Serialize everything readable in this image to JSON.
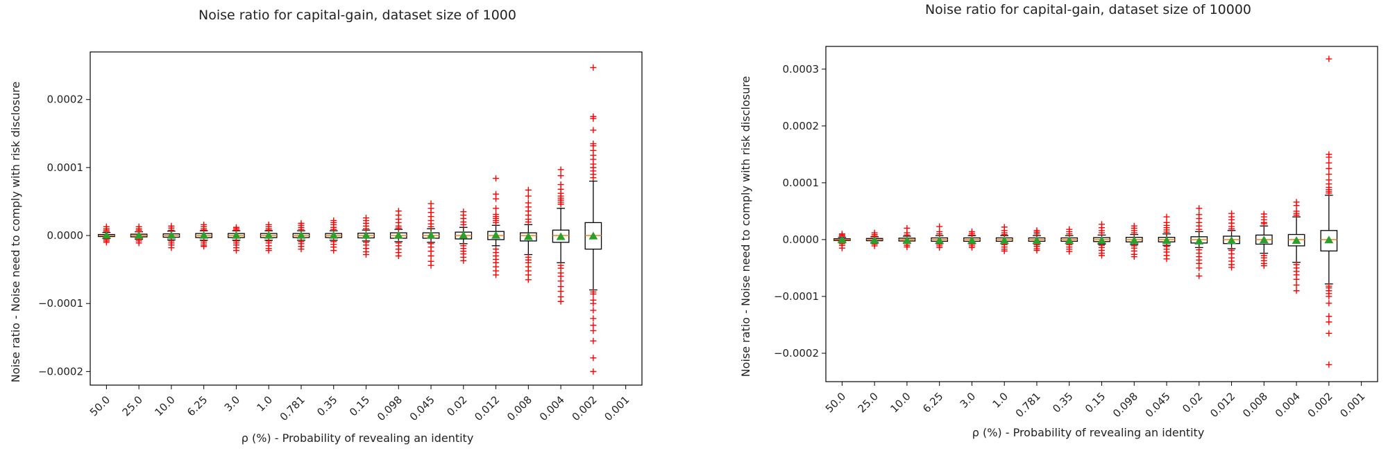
{
  "chart_data": [
    {
      "type": "box",
      "title": "Noise ratio for capital-gain, dataset size of 1000",
      "xlabel": "ρ (%) - Probability of revealing an identity",
      "ylabel": "Noise ratio - Noise need to comply with risk disclosure",
      "categories": [
        "50.0",
        "25.0",
        "10.0",
        "6.25",
        "3.0",
        "1.0",
        "0.781",
        "0.35",
        "0.15",
        "0.098",
        "0.045",
        "0.02",
        "0.012",
        "0.008",
        "0.004",
        "0.002",
        "0.001"
      ],
      "yticks": [
        -0.0002,
        -0.0001,
        0.0,
        0.0001,
        0.0002
      ],
      "ytick_labels": [
        "−0.0002",
        "−0.0001",
        "0.0000",
        "0.0001",
        "0.0002"
      ],
      "ylim": [
        -0.00022,
        0.00027
      ],
      "grid": false,
      "boxes": [
        {
          "q1": -1.5e-06,
          "median": 0.0,
          "q3": 1.5e-06,
          "mean": 0.0,
          "whisker_low": -4.5e-06,
          "whisker_high": 4.5e-06,
          "fliers": [
            1.3e-05,
            1e-05,
            8e-06,
            6e-06,
            -6e-06,
            -8e-06,
            -1e-05
          ]
        },
        {
          "q1": -2e-06,
          "median": 0.0,
          "q3": 2e-06,
          "mean": 0.0,
          "whisker_low": -5.5e-06,
          "whisker_high": 5.5e-06,
          "fliers": [
            1.3e-05,
            1e-05,
            8e-06,
            6e-06,
            -6e-06,
            -8e-06,
            -1.1e-05
          ]
        },
        {
          "q1": -2.5e-06,
          "median": 0.0,
          "q3": 2.5e-06,
          "mean": 0.0,
          "whisker_low": -6.5e-06,
          "whisker_high": 6.5e-06,
          "fliers": [
            1.4e-05,
            1.1e-05,
            8e-06,
            -8e-06,
            -1.1e-05,
            -1.4e-05,
            -1.8e-05
          ]
        },
        {
          "q1": -3e-06,
          "median": 0.0,
          "q3": 3e-06,
          "mean": 0.0,
          "whisker_low": -7e-06,
          "whisker_high": 7e-06,
          "fliers": [
            1.6e-05,
            1.3e-05,
            1e-05,
            8e-06,
            -8e-06,
            -1.1e-05,
            -1.4e-05,
            -1.6e-05
          ]
        },
        {
          "q1": -3e-06,
          "median": 0.0,
          "q3": 3e-06,
          "mean": 0.0,
          "whisker_low": -7e-06,
          "whisker_high": 7e-06,
          "fliers": [
            1.2e-05,
            1e-05,
            8e-06,
            -8e-06,
            -1.1e-05,
            -1.4e-05,
            -1.8e-05,
            -2.2e-05
          ]
        },
        {
          "q1": -3e-06,
          "median": 0.0,
          "q3": 3e-06,
          "mean": 0.0,
          "whisker_low": -7e-06,
          "whisker_high": 7e-06,
          "fliers": [
            1.6e-05,
            1.3e-05,
            1e-05,
            8e-06,
            -8e-06,
            -1.1e-05,
            -1.5e-05,
            -1.9e-05,
            -2.2e-05
          ]
        },
        {
          "q1": -3e-06,
          "median": 0.0,
          "q3": 3e-06,
          "mean": 0.0,
          "whisker_low": -7e-06,
          "whisker_high": 7e-06,
          "fliers": [
            1.8e-05,
            1.5e-05,
            1.2e-05,
            9e-06,
            -9e-06,
            -1.2e-05,
            -1.6e-05,
            -2e-05
          ]
        },
        {
          "q1": -3e-06,
          "median": 0.0,
          "q3": 3e-06,
          "mean": 0.0,
          "whisker_low": -7e-06,
          "whisker_high": 7e-06,
          "fliers": [
            2.2e-05,
            1.9e-05,
            1.6e-05,
            1.2e-05,
            9e-06,
            -9e-06,
            -1.3e-05,
            -1.7e-05,
            -2.2e-05
          ]
        },
        {
          "q1": -3.5e-06,
          "median": 0.0,
          "q3": 3.5e-06,
          "mean": 0.0,
          "whisker_low": -8e-06,
          "whisker_high": 8e-06,
          "fliers": [
            2.6e-05,
            2.2e-05,
            1.8e-05,
            1.4e-05,
            1e-05,
            -1e-05,
            -1.4e-05,
            -1.9e-05,
            -2.4e-05,
            -2.8e-05
          ]
        },
        {
          "q1": -4e-06,
          "median": 0.0,
          "q3": 4e-06,
          "mean": 0.0,
          "whisker_low": -9e-06,
          "whisker_high": 9e-06,
          "fliers": [
            3.6e-05,
            3e-05,
            2.4e-05,
            1.9e-05,
            1.4e-05,
            1.1e-05,
            -1.1e-05,
            -1.5e-05,
            -2e-05,
            -2.5e-05,
            -3e-05
          ]
        },
        {
          "q1": -4e-06,
          "median": 0.0,
          "q3": 4e-06,
          "mean": 0.0,
          "whisker_low": -1e-05,
          "whisker_high": 1e-05,
          "fliers": [
            4.7e-05,
            4e-05,
            3.4e-05,
            2.8e-05,
            2.2e-05,
            1.7e-05,
            1.3e-05,
            -1.2e-05,
            -1.7e-05,
            -2.3e-05,
            -3e-05,
            -3.8e-05,
            -4.4e-05
          ]
        },
        {
          "q1": -5e-06,
          "median": 0.0,
          "q3": 5e-06,
          "mean": 0.0,
          "whisker_low": -1.2e-05,
          "whisker_high": 1.2e-05,
          "fliers": [
            3.5e-05,
            3e-05,
            2.5e-05,
            2e-05,
            1.6e-05,
            -1.5e-05,
            -1.9e-05,
            -2.3e-05,
            -2.7e-05,
            -3.2e-05,
            -3.7e-05
          ]
        },
        {
          "q1": -6e-06,
          "median": 0.0,
          "q3": 6e-06,
          "mean": 0.0,
          "whisker_low": -1.5e-05,
          "whisker_high": 1.5e-05,
          "fliers": [
            8.4e-05,
            6.1e-05,
            5.4e-05,
            4e-05,
            3.1e-05,
            2.8e-05,
            2.5e-05,
            2.2e-05,
            1.9e-05,
            -2e-05,
            -2.5e-05,
            -3e-05,
            -3.5e-05,
            -4e-05,
            -4.6e-05,
            -5.2e-05,
            -5.8e-05
          ]
        },
        {
          "q1": -8e-06,
          "median": 0.0,
          "q3": 4e-06,
          "mean": -2e-06,
          "whisker_low": -2.8e-05,
          "whisker_high": 1.6e-05,
          "fliers": [
            6.7e-05,
            5.8e-05,
            4.8e-05,
            4.2e-05,
            3.6e-05,
            3e-05,
            2.4e-05,
            2e-05,
            -3.2e-05,
            -3.6e-05,
            -4e-05,
            -4.6e-05,
            -5.2e-05,
            -5.8e-05,
            -6.5e-05
          ]
        },
        {
          "q1": -1e-05,
          "median": 0.0,
          "q3": 8e-06,
          "mean": -2e-06,
          "whisker_low": -4e-05,
          "whisker_high": 4e-05,
          "fliers": [
            9.7e-05,
            8.8e-05,
            7.5e-05,
            6.8e-05,
            6.2e-05,
            5.8e-05,
            5.5e-05,
            5.2e-05,
            4.9e-05,
            4.6e-05,
            -4.4e-05,
            -4.8e-05,
            -5.5e-05,
            -6e-05,
            -6.7e-05,
            -7.5e-05,
            -8.2e-05,
            -9e-05,
            -9.7e-05
          ]
        },
        {
          "q1": -2e-05,
          "median": 0.0,
          "q3": 1.9e-05,
          "mean": -1e-06,
          "whisker_low": -8e-05,
          "whisker_high": 8e-05,
          "fliers": [
            0.000247,
            0.000175,
            0.000172,
            0.000155,
            0.000135,
            0.000132,
            0.000125,
            0.000118,
            0.000112,
            0.000105,
            0.0001,
            9.5e-05,
            9e-05,
            8.5e-05,
            -8.3e-05,
            -8.6e-05,
            -9.5e-05,
            -0.0001,
            -0.00011,
            -0.000122,
            -0.000132,
            -0.00014,
            -0.000155,
            -0.00018,
            -0.0002
          ]
        },
        null
      ]
    },
    {
      "type": "box",
      "title": "Noise ratio for capital-gain, dataset size of 10000",
      "xlabel": "ρ (%) - Probability of revealing an identity",
      "ylabel": "Noise ratio - Noise need to comply with risk disclosure",
      "categories": [
        "50.0",
        "25.0",
        "10.0",
        "6.25",
        "3.0",
        "1.0",
        "0.781",
        "0.35",
        "0.15",
        "0.098",
        "0.045",
        "0.02",
        "0.012",
        "0.008",
        "0.004",
        "0.002",
        "0.001"
      ],
      "yticks": [
        -0.0002,
        -0.0001,
        0.0,
        0.0001,
        0.0002,
        0.0003
      ],
      "ytick_labels": [
        "−0.0002",
        "−0.0001",
        "0.0000",
        "0.0001",
        "0.0002",
        "0.0003"
      ],
      "ylim": [
        -0.00025,
        0.00034
      ],
      "grid": false,
      "boxes": [
        {
          "q1": -1.5e-06,
          "median": 0.0,
          "q3": 1.5e-06,
          "mean": -1e-06,
          "whisker_low": -4e-06,
          "whisker_high": 4e-06,
          "fliers": [
            1e-05,
            8e-06,
            6e-06,
            -5e-06,
            -7e-06,
            -1e-05,
            -1.5e-05
          ]
        },
        {
          "q1": -2e-06,
          "median": 0.0,
          "q3": 2e-06,
          "mean": -2e-06,
          "whisker_low": -5e-06,
          "whisker_high": 5e-06,
          "fliers": [
            1.2e-05,
            9e-06,
            6e-06,
            -6e-06,
            -8e-06,
            -1.1e-05
          ]
        },
        {
          "q1": -2.5e-06,
          "median": 0.0,
          "q3": 2.5e-06,
          "mean": -2e-06,
          "whisker_low": -6e-06,
          "whisker_high": 6e-06,
          "fliers": [
            2e-05,
            1.2e-05,
            8e-06,
            -7e-06,
            -1e-05,
            -1.3e-05
          ]
        },
        {
          "q1": -3e-06,
          "median": 0.0,
          "q3": 3e-06,
          "mean": -2e-06,
          "whisker_low": -7e-06,
          "whisker_high": 7e-06,
          "fliers": [
            2.3e-05,
            1.4e-05,
            1e-05,
            -8e-06,
            -1.1e-05,
            -1.4e-05
          ]
        },
        {
          "q1": -3e-06,
          "median": 0.0,
          "q3": 3e-06,
          "mean": -2e-06,
          "whisker_low": -7e-06,
          "whisker_high": 7e-06,
          "fliers": [
            1.4e-05,
            1.1e-05,
            8e-06,
            -8e-06,
            -1.1e-05,
            -1.4e-05
          ]
        },
        {
          "q1": -3e-06,
          "median": 0.0,
          "q3": 3e-06,
          "mean": -2e-06,
          "whisker_low": -7e-06,
          "whisker_high": 7e-06,
          "fliers": [
            2.2e-05,
            1.6e-05,
            1.2e-05,
            9e-06,
            -9e-06,
            -1.3e-05,
            -1.7e-05,
            -2e-05
          ]
        },
        {
          "q1": -3e-06,
          "median": 0.0,
          "q3": 3e-06,
          "mean": -2e-06,
          "whisker_low": -7e-06,
          "whisker_high": 7e-06,
          "fliers": [
            1.6e-05,
            1.3e-05,
            1e-05,
            -9e-06,
            -1.2e-05,
            -1.6e-05,
            -1.9e-05
          ]
        },
        {
          "q1": -3e-06,
          "median": 0.0,
          "q3": 3e-06,
          "mean": -2e-06,
          "whisker_low": -7e-06,
          "whisker_high": 7e-06,
          "fliers": [
            1.8e-05,
            1.4e-05,
            1e-05,
            -9e-06,
            -1.3e-05,
            -1.7e-05,
            -2.1e-05
          ]
        },
        {
          "q1": -3.5e-06,
          "median": 0.0,
          "q3": 3.5e-06,
          "mean": -2e-06,
          "whisker_low": -8e-06,
          "whisker_high": 8e-06,
          "fliers": [
            2.7e-05,
            2.1e-05,
            1.6e-05,
            1.2e-05,
            -1e-05,
            -1.4e-05,
            -1.9e-05,
            -2.4e-05,
            -2.8e-05
          ]
        },
        {
          "q1": -4e-06,
          "median": 0.0,
          "q3": 4e-06,
          "mean": -2e-06,
          "whisker_low": -9e-06,
          "whisker_high": 9e-06,
          "fliers": [
            2.4e-05,
            2e-05,
            1.6e-05,
            1.2e-05,
            -1.1e-05,
            -1.5e-05,
            -2e-05,
            -2.6e-05,
            -3e-05
          ]
        },
        {
          "q1": -4e-06,
          "median": 0.0,
          "q3": 4e-06,
          "mean": -2e-06,
          "whisker_low": -1e-05,
          "whisker_high": 1e-05,
          "fliers": [
            4e-05,
            3e-05,
            2.5e-05,
            2.1e-05,
            1.7e-05,
            1.3e-05,
            -1.2e-05,
            -1.7e-05,
            -2.2e-05,
            -2.8e-05,
            -3.4e-05
          ]
        },
        {
          "q1": -6e-06,
          "median": 0.0,
          "q3": 5e-06,
          "mean": -3e-06,
          "whisker_low": -1.4e-05,
          "whisker_high": 1.4e-05,
          "fliers": [
            5.5e-05,
            4.4e-05,
            3.7e-05,
            3e-05,
            2.4e-05,
            1.8e-05,
            -1.8e-05,
            -2.4e-05,
            -3e-05,
            -3.6e-05,
            -4.2e-05,
            -5e-05,
            -6.4e-05
          ]
        },
        {
          "q1": -7e-06,
          "median": 0.0,
          "q3": 6e-06,
          "mean": -2e-06,
          "whisker_low": -1.6e-05,
          "whisker_high": 1.6e-05,
          "fliers": [
            4.6e-05,
            4e-05,
            3.5e-05,
            2.9e-05,
            2.3e-05,
            1.9e-05,
            -1.9e-05,
            -2.5e-05,
            -3.2e-05,
            -3.8e-05,
            -4.4e-05,
            -4.9e-05
          ]
        },
        {
          "q1": -8e-06,
          "median": 0.0,
          "q3": 8e-06,
          "mean": -1e-06,
          "whisker_low": -2.4e-05,
          "whisker_high": 2.4e-05,
          "fliers": [
            4.5e-05,
            4e-05,
            3.5e-05,
            3e-05,
            2.8e-05,
            -2.8e-05,
            -3.2e-05,
            -3.7e-05,
            -4.2e-05,
            -4.6e-05
          ]
        },
        {
          "q1": -1.1e-05,
          "median": 0.0,
          "q3": 9e-06,
          "mean": -2e-06,
          "whisker_low": -4e-05,
          "whisker_high": 4e-05,
          "fliers": [
            6.6e-05,
            6e-05,
            5e-05,
            4.6e-05,
            4.3e-05,
            -4.4e-05,
            -5e-05,
            -5.6e-05,
            -6.2e-05,
            -7e-05,
            -8e-05,
            -9e-05
          ]
        },
        {
          "q1": -2e-05,
          "median": 0.0,
          "q3": 1.6e-05,
          "mean": -1e-06,
          "whisker_low": -7.8e-05,
          "whisker_high": 7.8e-05,
          "fliers": [
            0.000318,
            0.00015,
            0.000145,
            0.000135,
            0.000125,
            0.000115,
            0.000105,
            9.8e-05,
            9.2e-05,
            8.8e-05,
            8.5e-05,
            8.2e-05,
            -8.2e-05,
            -8.5e-05,
            -9e-05,
            -9.5e-05,
            -0.0001,
            -0.000112,
            -0.000135,
            -0.000145,
            -0.000165,
            -0.00022
          ]
        },
        null
      ]
    }
  ],
  "colors": {
    "box_edge": "#000000",
    "median": "#ff7f0e",
    "mean": "#2ca02c",
    "flier": "#ff0000",
    "axes": "#000000"
  }
}
